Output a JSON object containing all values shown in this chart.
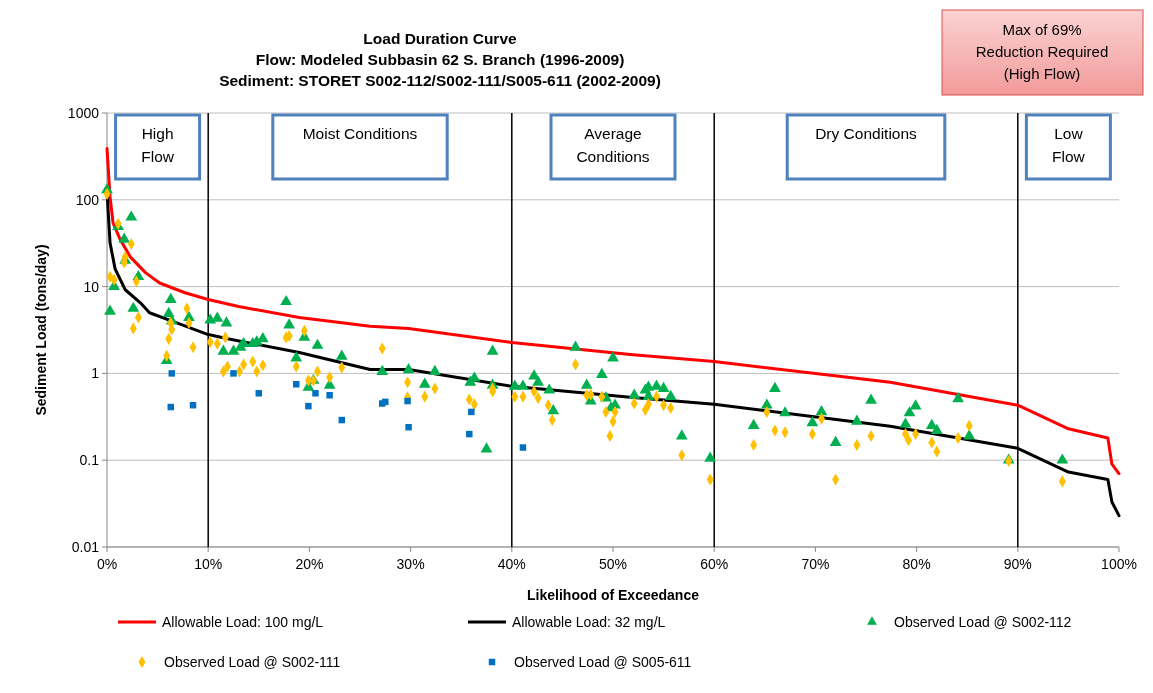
{
  "chart_data": {
    "type": "scatter",
    "title": "Load Duration Curve\nFlow: Modeled Subbasin 62 S. Branch (1996-2009)\nSediment: STORET S002-112/S002-111/S005-611 (2002-2009)",
    "xlabel": "Likelihood of Exceedance",
    "ylabel": "Sediment Load (tons/day)",
    "log": "y",
    "grid": "y",
    "legend": "bottom",
    "xlim": [
      0,
      100
    ],
    "xticks": [
      {
        "value": 0,
        "label": "0%"
      },
      {
        "value": 10,
        "label": "10%"
      },
      {
        "value": 20,
        "label": "20%"
      },
      {
        "value": 30,
        "label": "30%"
      },
      {
        "value": 40,
        "label": "40%"
      },
      {
        "value": 50,
        "label": "50%"
      },
      {
        "value": 60,
        "label": "60%"
      },
      {
        "value": 70,
        "label": "70%"
      },
      {
        "value": 80,
        "label": "80%"
      },
      {
        "value": 90,
        "label": "90%"
      },
      {
        "value": 100,
        "label": "100%"
      }
    ],
    "ylim": [
      0.01,
      1000
    ],
    "yticks": [
      0.01,
      0.1,
      1,
      10,
      100,
      1000
    ],
    "ref_lines": [
      {
        "axis": "x",
        "value": 10,
        "color": "#000000"
      },
      {
        "axis": "x",
        "value": 40,
        "color": "#000000"
      },
      {
        "axis": "x",
        "value": 60,
        "color": "#000000"
      },
      {
        "axis": "x",
        "value": 90,
        "color": "#000000"
      }
    ],
    "annotations": [
      "High\nFlow",
      "Moist Conditions",
      "Average\nConditions",
      "Dry Conditions",
      "Low\nFlow",
      "Max of 69%\nReduction Required\n(High Flow)"
    ],
    "series": [
      {
        "name": "Allowable Load: 100 mg/L",
        "type": "line",
        "marker": "none",
        "color": "#ff0000",
        "x": [
          0,
          0.3,
          0.6,
          1.3,
          2.3,
          3.8,
          5.2,
          7.7,
          10,
          13,
          19,
          26,
          29.8,
          40,
          51.7,
          60,
          77.4,
          90,
          95,
          98.9,
          99.3,
          100
        ],
        "values": [
          390,
          108,
          54,
          35,
          22,
          14.5,
          11,
          8.5,
          7.1,
          5.9,
          4.4,
          3.5,
          3.3,
          2.27,
          1.65,
          1.37,
          0.79,
          0.43,
          0.23,
          0.18,
          0.09,
          0.07
        ]
      },
      {
        "name": "Allowable Load: 32 mg/L",
        "type": "line",
        "marker": "none",
        "color": "#000000",
        "x": [
          0,
          0.3,
          0.8,
          1.8,
          3.3,
          4.2,
          6.7,
          10,
          12.3,
          19,
          26,
          29.8,
          40,
          51.7,
          60,
          77.4,
          90,
          95,
          98.9,
          99.3,
          100
        ],
        "values": [
          125,
          32,
          16,
          9.2,
          6.5,
          5,
          3.9,
          2.8,
          2.46,
          1.74,
          1.11,
          1.11,
          0.71,
          0.53,
          0.44,
          0.246,
          0.137,
          0.073,
          0.06,
          0.033,
          0.023
        ]
      },
      {
        "name": "Observed Load @ S002-112",
        "marker": "triangle",
        "color": "#00b050",
        "x": [
          0,
          1.1,
          2.4,
          1.7,
          1.8,
          3.1,
          0.7,
          0.3,
          2.6,
          6.3,
          6.1,
          6.4,
          8.1,
          5.9,
          10.2,
          10.9,
          11.8,
          11.5,
          12.5,
          13.2,
          13.5,
          14.4,
          14.8,
          15.4,
          17.7,
          18,
          19.5,
          20.8,
          18.7,
          23.2,
          19.9,
          20.4,
          22,
          27.2,
          29.8,
          31.4,
          32.4,
          35.9,
          36.3,
          38.1,
          38.1,
          37.5,
          40.3,
          41.1,
          42.2,
          42.6,
          43.7,
          44.1,
          46.3,
          47.4,
          47.8,
          48.9,
          49.3,
          50,
          49.8,
          50.2,
          52.1,
          53.2,
          53.5,
          53.5,
          54.3,
          55,
          55.7,
          56.8,
          59.6,
          63.9,
          65.2,
          66,
          67,
          69.7,
          70.6,
          72,
          74.1,
          75.5,
          78.9,
          79.3,
          79.9,
          81.5,
          82,
          84.1,
          85.2,
          89.1,
          94.4
        ],
        "values": [
          130,
          49,
          63,
          35,
          20,
          13,
          10,
          5.2,
          5.6,
          7.1,
          4.9,
          4,
          4.4,
          1.4,
          4.1,
          4.3,
          3.8,
          1.8,
          1.8,
          2,
          2.2,
          2.2,
          2.3,
          2.5,
          6.7,
          3.6,
          2.6,
          2.1,
          1.5,
          1.57,
          0.69,
          0.83,
          0.73,
          1.05,
          1.1,
          0.75,
          1.05,
          0.79,
          0.88,
          1.8,
          0.73,
          0.134,
          0.71,
          0.71,
          0.93,
          0.79,
          0.64,
          0.37,
          2,
          0.73,
          0.48,
          0.97,
          0.52,
          1.5,
          0.4,
          0.43,
          0.56,
          0.64,
          0.69,
          0.54,
          0.71,
          0.67,
          0.54,
          0.19,
          0.105,
          0.25,
          0.43,
          0.67,
          0.35,
          0.27,
          0.36,
          0.16,
          0.28,
          0.49,
          0.26,
          0.35,
          0.42,
          0.25,
          0.22,
          0.51,
          0.19,
          0.1,
          0.1
        ]
      },
      {
        "name": "Observed Load @ S002-111",
        "marker": "diamond",
        "color": "#ffc000",
        "x": [
          0,
          1.1,
          2.4,
          1.8,
          1.7,
          0.3,
          0.7,
          2.9,
          3.1,
          2.6,
          6.3,
          6.4,
          6.1,
          5.9,
          7.9,
          8.1,
          8.5,
          10.2,
          10.9,
          11.7,
          11.5,
          11.9,
          13.1,
          13.5,
          14.4,
          14.8,
          15.4,
          17.7,
          18,
          19.5,
          18.7,
          19.9,
          20.4,
          20.8,
          22,
          23.2,
          27.2,
          29.7,
          29.7,
          31.4,
          32.4,
          35.8,
          36.3,
          38.1,
          38.1,
          40.3,
          41.1,
          42.2,
          42.6,
          43.6,
          44,
          46.3,
          47.4,
          47.8,
          48.9,
          49.3,
          49.7,
          50,
          50.2,
          52.1,
          53.2,
          53.5,
          54.3,
          55,
          55.7,
          56.8,
          59.6,
          63.9,
          65.2,
          66,
          67,
          69.7,
          70.6,
          72,
          74.1,
          75.5,
          78.9,
          79.2,
          79.9,
          81.5,
          82,
          84.1,
          85.2,
          89.1,
          94.4
        ],
        "values": [
          117,
          53,
          31,
          22,
          19,
          13,
          12,
          11.5,
          4.4,
          3.3,
          3.8,
          3.2,
          2.5,
          1.6,
          5.6,
          3.8,
          2,
          2.3,
          2.2,
          2.6,
          1.05,
          1.2,
          1.05,
          1.27,
          1.37,
          1.05,
          1.24,
          2.6,
          2.7,
          3.1,
          1.2,
          0.83,
          0.83,
          1.05,
          0.9,
          1.17,
          1.94,
          0.79,
          0.53,
          0.54,
          0.67,
          0.5,
          0.44,
          0.67,
          0.62,
          0.54,
          0.54,
          0.62,
          0.52,
          0.43,
          0.29,
          1.27,
          0.56,
          0.57,
          0.54,
          0.36,
          0.19,
          0.28,
          0.36,
          0.45,
          0.38,
          0.44,
          0.54,
          0.43,
          0.4,
          0.114,
          0.06,
          0.15,
          0.36,
          0.22,
          0.21,
          0.2,
          0.3,
          0.06,
          0.15,
          0.19,
          0.2,
          0.17,
          0.2,
          0.16,
          0.126,
          0.18,
          0.25,
          0.098,
          0.057
        ]
      },
      {
        "name": "Observed Load @ S005-611",
        "marker": "square",
        "color": "#0070c0",
        "x": [
          6.4,
          6.3,
          8.5,
          12.5,
          15,
          18.7,
          19.9,
          20.6,
          22,
          23.2,
          27.2,
          27.5,
          29.7,
          29.8,
          36,
          35.8,
          41.1
        ],
        "values": [
          1,
          0.41,
          0.43,
          1,
          0.59,
          0.75,
          0.42,
          0.59,
          0.56,
          0.29,
          0.45,
          0.47,
          0.48,
          0.24,
          0.36,
          0.2,
          0.14
        ]
      }
    ]
  }
}
